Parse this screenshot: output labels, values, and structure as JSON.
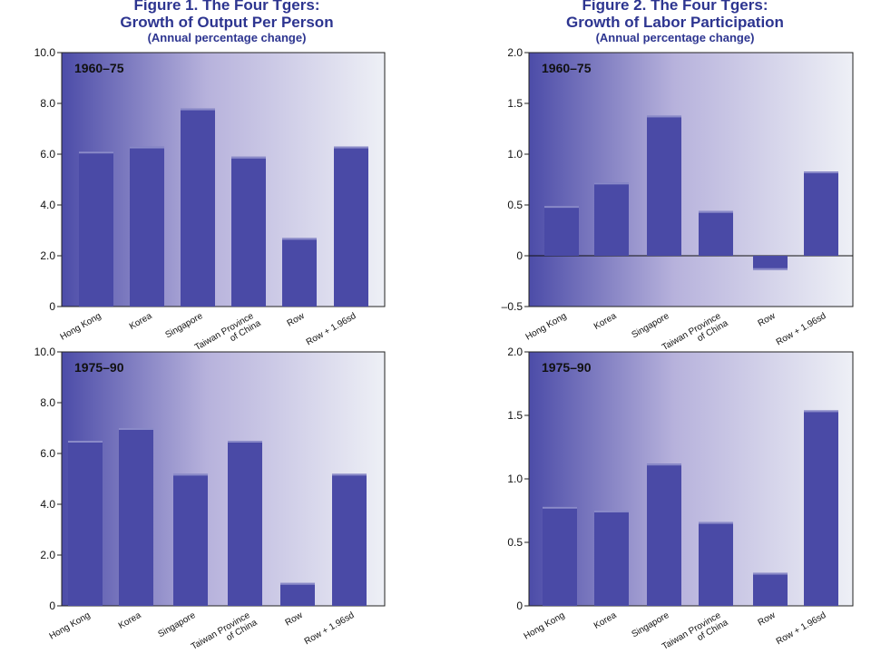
{
  "figures": [
    {
      "title_line1": "Figure 1.  The Four Tgers:",
      "title_line2": "Growth of Output Per Person",
      "title_line3": "(Annual percentage change)"
    },
    {
      "title_line1": "Figure 2.  The Four Tgers:",
      "title_line2": "Growth of Labor Participation",
      "title_line3": "(Annual percentage change)"
    }
  ],
  "colors": {
    "bar": "#4a4aa6",
    "bar_top": "#8a8ac8",
    "panel_left": "#4c4ca8",
    "panel_mid": "#b7b2dc",
    "panel_right": "#eef0f6"
  },
  "chart_data": [
    {
      "type": "bar",
      "panel": "1960–75",
      "categories": [
        "Hong Kong",
        "Korea",
        "Singapore",
        "Taiwan Province of China",
        "Row",
        "Row + 1.96sd"
      ],
      "values": [
        6.1,
        6.3,
        7.8,
        5.9,
        2.7,
        6.3
      ],
      "ylim": [
        0,
        10
      ],
      "yticks": [
        "10.0",
        "8.0",
        "6.0",
        "4.0",
        "2.0",
        "0"
      ],
      "ytick_values": [
        10,
        8,
        6,
        4,
        2,
        0
      ]
    },
    {
      "type": "bar",
      "panel": "1960–75",
      "categories": [
        "Hong Kong",
        "Korea",
        "Singapore",
        "Taiwan Province of China",
        "Row",
        "Row + 1.96sd"
      ],
      "values": [
        0.49,
        0.72,
        1.38,
        0.44,
        -0.14,
        0.83
      ],
      "ylim": [
        -0.5,
        2.0
      ],
      "yticks": [
        "2.0",
        "1.5",
        "1.0",
        "0.5",
        "0",
        "–0.5"
      ],
      "ytick_values": [
        2.0,
        1.5,
        1.0,
        0.5,
        0,
        -0.5
      ]
    },
    {
      "type": "bar",
      "panel": "1975–90",
      "categories": [
        "Hong Kong",
        "Korea",
        "Singapore",
        "Taiwan Province of China",
        "Row",
        "Row + 1.96sd"
      ],
      "values": [
        6.5,
        7.0,
        5.2,
        6.5,
        0.9,
        5.2
      ],
      "ylim": [
        0,
        10
      ],
      "yticks": [
        "10.0",
        "8.0",
        "6.0",
        "4.0",
        "2.0",
        "0"
      ],
      "ytick_values": [
        10,
        8,
        6,
        4,
        2,
        0
      ]
    },
    {
      "type": "bar",
      "panel": "1975–90",
      "categories": [
        "Hong Kong",
        "Korea",
        "Singapore",
        "Taiwan Province of China",
        "Row",
        "Row + 1.96sd"
      ],
      "values": [
        0.78,
        0.75,
        1.12,
        0.66,
        0.26,
        1.54
      ],
      "ylim": [
        0,
        2.0
      ],
      "yticks": [
        "2.0",
        "1.5",
        "1.0",
        "0.5",
        "0"
      ],
      "ytick_values": [
        2.0,
        1.5,
        1.0,
        0.5,
        0
      ]
    }
  ]
}
